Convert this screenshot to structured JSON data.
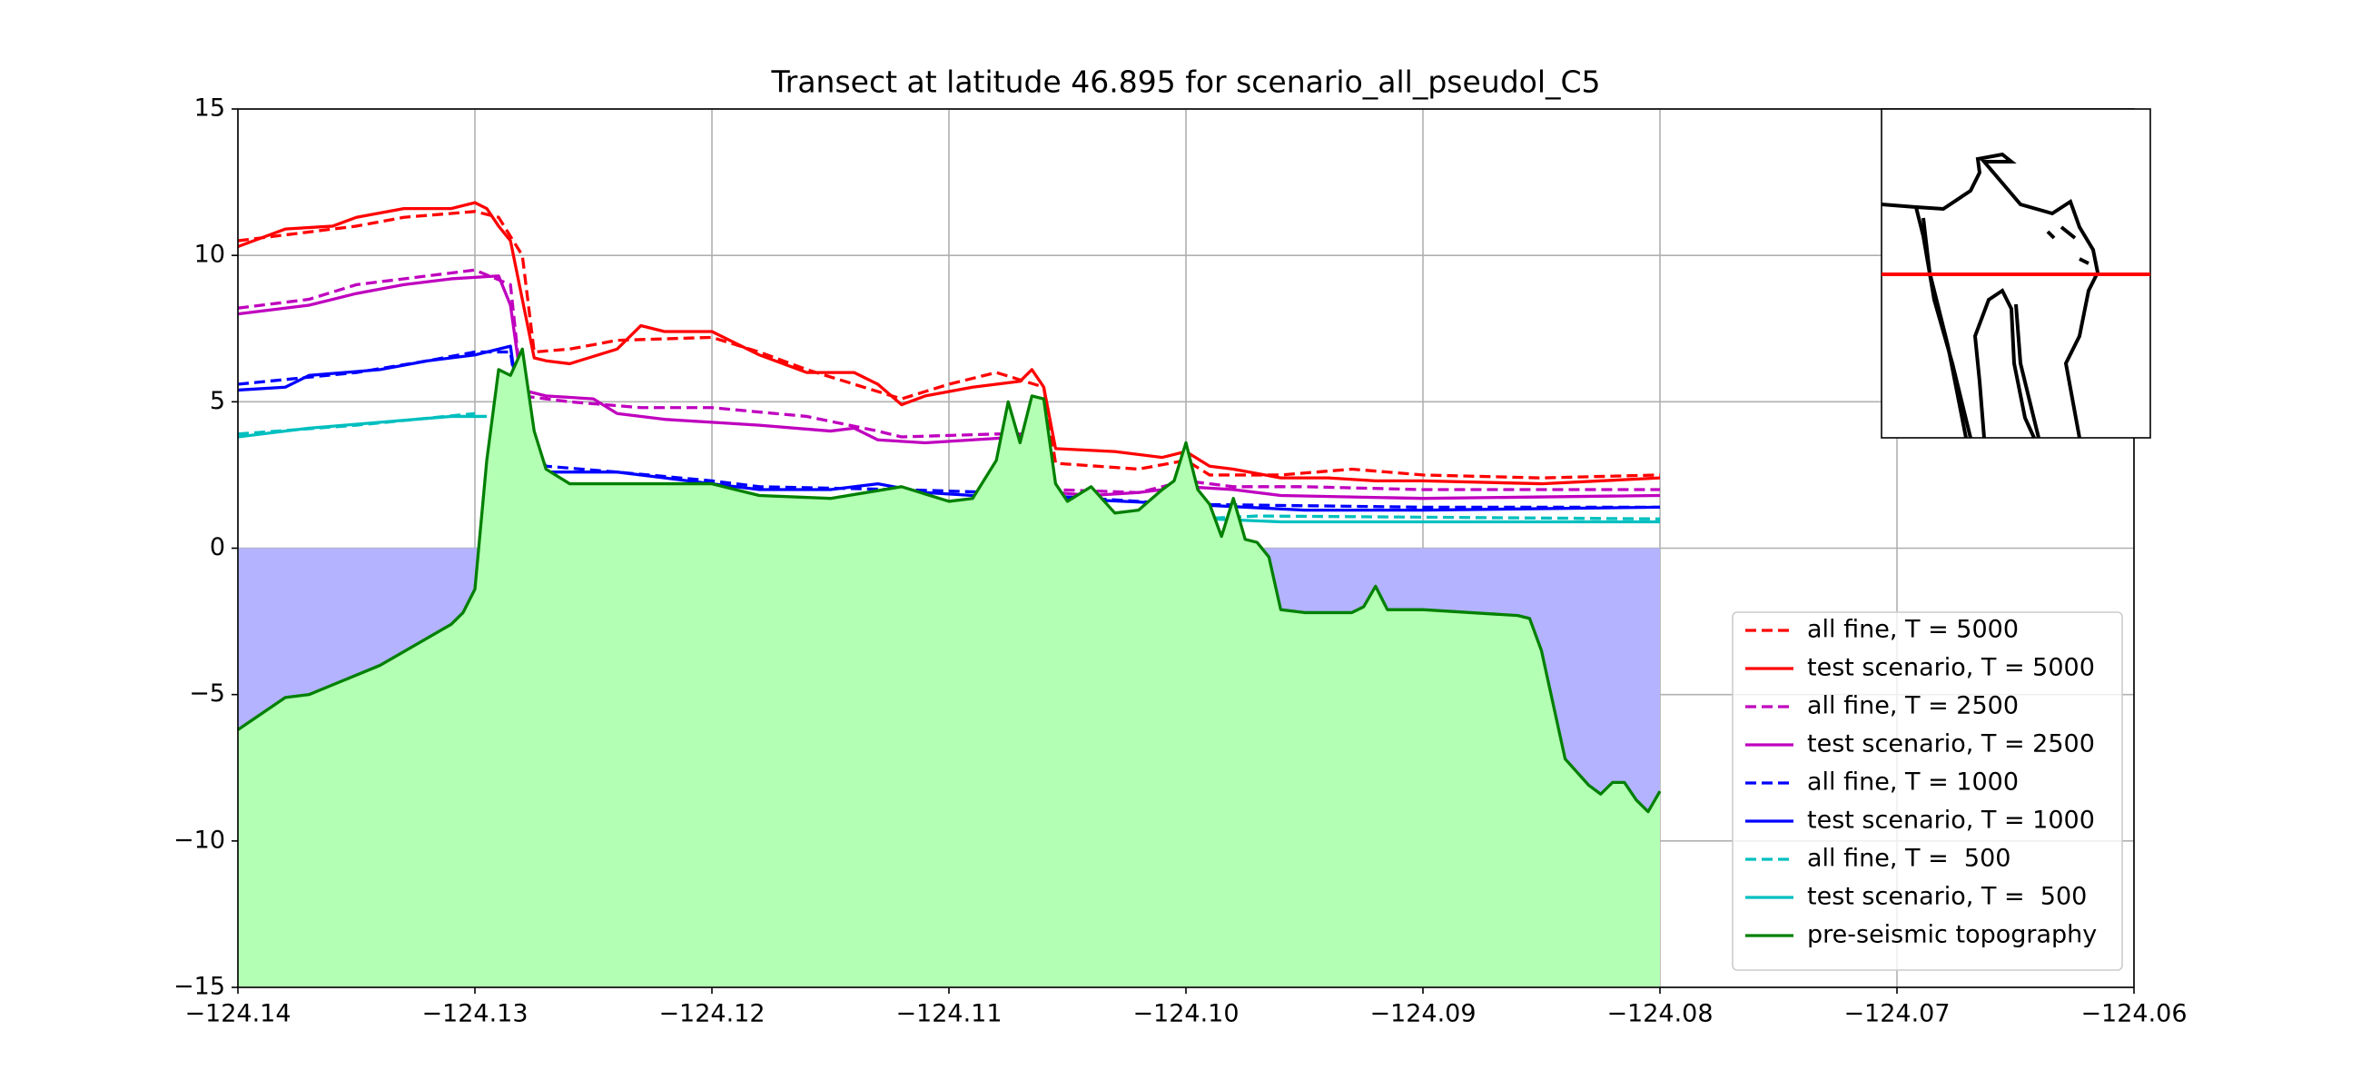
{
  "chart_data": {
    "type": "line",
    "title": "Transect at latitude 46.895 for scenario_all_pseudol_C5",
    "xlim": [
      -124.14,
      -124.06
    ],
    "ylim": [
      -15,
      15
    ],
    "xticks": [
      {
        "value": -124.14,
        "label": "−124.14"
      },
      {
        "value": -124.13,
        "label": "−124.13"
      },
      {
        "value": -124.12,
        "label": "−124.12"
      },
      {
        "value": -124.11,
        "label": "−124.11"
      },
      {
        "value": -124.1,
        "label": "−124.10"
      },
      {
        "value": -124.09,
        "label": "−124.09"
      },
      {
        "value": -124.08,
        "label": "−124.08"
      },
      {
        "value": -124.07,
        "label": "−124.07"
      },
      {
        "value": -124.06,
        "label": "−124.06"
      }
    ],
    "yticks": [
      {
        "value": -15,
        "label": "−15"
      },
      {
        "value": -10,
        "label": "−10"
      },
      {
        "value": -5,
        "label": "−5"
      },
      0,
      5,
      10,
      15
    ],
    "grid": true,
    "legend": "lower right",
    "series": [
      {
        "name": "all fine, T = 5000",
        "color": "#ff0000",
        "linestyle": "dashed",
        "x": [
          -124.14,
          -124.135,
          -124.133,
          -124.13,
          -124.129,
          -124.128,
          -124.1275,
          -124.126,
          -124.124,
          -124.12,
          -124.118,
          -124.116,
          -124.112,
          -124.11,
          -124.108,
          -124.106,
          -124.1055,
          -124.102,
          -124.1,
          -124.099,
          -124.096,
          -124.093,
          -124.09,
          -124.085,
          -124.08
        ],
        "values": [
          10.5,
          11.0,
          11.3,
          11.5,
          11.3,
          10.0,
          6.7,
          6.8,
          7.1,
          7.2,
          6.7,
          6.1,
          5.1,
          5.6,
          6.0,
          5.5,
          2.9,
          2.7,
          3.0,
          2.5,
          2.5,
          2.7,
          2.5,
          2.4,
          2.5
        ]
      },
      {
        "name": "test scenario, T = 5000",
        "color": "#ff0000",
        "linestyle": "solid",
        "x": [
          -124.14,
          -124.138,
          -124.136,
          -124.135,
          -124.133,
          -124.131,
          -124.13,
          -124.1295,
          -124.129,
          -124.1285,
          -124.128,
          -124.1275,
          -124.127,
          -124.126,
          -124.124,
          -124.123,
          -124.122,
          -124.12,
          -124.118,
          -124.116,
          -124.114,
          -124.113,
          -124.112,
          -124.111,
          -124.109,
          -124.107,
          -124.1065,
          -124.106,
          -124.1055,
          -124.103,
          -124.101,
          -124.1,
          -124.099,
          -124.098,
          -124.096,
          -124.094,
          -124.092,
          -124.09,
          -124.085,
          -124.08
        ],
        "values": [
          10.3,
          10.9,
          11.0,
          11.3,
          11.6,
          11.6,
          11.8,
          11.6,
          11.0,
          10.5,
          8.5,
          6.5,
          6.4,
          6.3,
          6.8,
          7.6,
          7.4,
          7.4,
          6.6,
          6.0,
          6.0,
          5.6,
          4.9,
          5.2,
          5.5,
          5.7,
          6.1,
          5.5,
          3.4,
          3.3,
          3.1,
          3.3,
          2.8,
          2.7,
          2.4,
          2.4,
          2.3,
          2.3,
          2.2,
          2.4
        ]
      },
      {
        "name": "all fine, T = 2500",
        "color": "#bf00bf",
        "linestyle": "dashed",
        "x": [
          -124.14,
          -124.137,
          -124.135,
          -124.132,
          -124.13,
          -124.1285,
          -124.128,
          -124.126,
          -124.123,
          -124.12,
          -124.116,
          -124.113,
          -124.112,
          -124.108,
          -124.106,
          -124.1055,
          -124.102,
          -124.1,
          -124.098,
          -124.095,
          -124.09,
          -124.08
        ],
        "values": [
          8.2,
          8.5,
          9.0,
          9.3,
          9.5,
          9.0,
          5.2,
          5.0,
          4.8,
          4.8,
          4.5,
          4.0,
          3.8,
          3.9,
          3.9,
          2.0,
          1.9,
          2.3,
          2.1,
          2.1,
          2.0,
          2.0
        ]
      },
      {
        "name": "test scenario, T = 2500",
        "color": "#bf00bf",
        "linestyle": "solid",
        "x": [
          -124.14,
          -124.137,
          -124.135,
          -124.133,
          -124.131,
          -124.129,
          -124.1285,
          -124.128,
          -124.127,
          -124.125,
          -124.124,
          -124.122,
          -124.12,
          -124.118,
          -124.115,
          -124.114,
          -124.113,
          -124.111,
          -124.109,
          -124.107,
          -124.106,
          -124.1055,
          -124.104,
          -124.102,
          -124.1,
          -124.098,
          -124.096,
          -124.09,
          -124.08
        ],
        "values": [
          8.0,
          8.3,
          8.7,
          9.0,
          9.2,
          9.3,
          8.3,
          5.4,
          5.2,
          5.1,
          4.6,
          4.4,
          4.3,
          4.2,
          4.0,
          4.1,
          3.7,
          3.6,
          3.7,
          3.8,
          3.9,
          1.9,
          1.8,
          1.9,
          2.1,
          2.0,
          1.8,
          1.7,
          1.8
        ]
      },
      {
        "name": "all fine, T = 1000",
        "color": "#0000ff",
        "linestyle": "dashed",
        "x": [
          -124.14,
          -124.135,
          -124.132,
          -124.13,
          -124.1285,
          -124.128,
          -124.127,
          -124.124,
          -124.12,
          -124.118,
          -124.112,
          -124.108,
          -124.1,
          -124.09,
          -124.08
        ],
        "values": [
          5.6,
          6.0,
          6.4,
          6.7,
          6.7,
          4.0,
          2.8,
          2.6,
          2.3,
          2.1,
          2.0,
          1.9,
          1.5,
          1.4,
          1.4
        ]
      },
      {
        "name": "test scenario, T = 1000",
        "color": "#0000ff",
        "linestyle": "solid",
        "x": [
          -124.14,
          -124.138,
          -124.137,
          -124.134,
          -124.132,
          -124.13,
          -124.1285,
          -124.128,
          -124.1275,
          -124.127,
          -124.124,
          -124.122,
          -124.118,
          -124.115,
          -124.113,
          -124.111,
          -124.109,
          -124.108,
          -124.1,
          -124.095,
          -124.09,
          -124.08
        ],
        "values": [
          5.4,
          5.5,
          5.9,
          6.1,
          6.4,
          6.6,
          6.9,
          4.0,
          3.0,
          2.6,
          2.6,
          2.4,
          2.0,
          2.0,
          2.2,
          1.9,
          1.8,
          1.8,
          1.5,
          1.3,
          1.3,
          1.4
        ]
      },
      {
        "name": "all fine, T =  500",
        "color": "#00bfbf",
        "linestyle": "dashed",
        "x": [
          -124.14,
          -124.135,
          -124.13,
          -124.1,
          -124.0995,
          -124.097,
          -124.08
        ],
        "values": [
          3.9,
          4.2,
          4.6,
          null,
          1.0,
          1.1,
          1.0
        ]
      },
      {
        "name": "test scenario, T =  500",
        "color": "#00bfbf",
        "linestyle": "solid",
        "x": [
          -124.14,
          -124.137,
          -124.134,
          -124.131,
          -124.1295,
          -124.1,
          -124.0995,
          -124.099,
          -124.096,
          -124.08
        ],
        "values": [
          3.8,
          4.1,
          4.3,
          4.5,
          4.5,
          null,
          0.9,
          1.0,
          0.9,
          0.9
        ]
      },
      {
        "name": "pre-seismic topography",
        "color": "#008000",
        "linestyle": "solid",
        "fill_colors": [
          "#b3b3ff",
          "#b3ffb3"
        ],
        "x": [
          -124.14,
          -124.138,
          -124.137,
          -124.134,
          -124.131,
          -124.1305,
          -124.13,
          -124.1295,
          -124.129,
          -124.1285,
          -124.128,
          -124.1275,
          -124.127,
          -124.126,
          -124.125,
          -124.124,
          -124.12,
          -124.118,
          -124.115,
          -124.112,
          -124.11,
          -124.109,
          -124.108,
          -124.1075,
          -124.107,
          -124.1065,
          -124.106,
          -124.1055,
          -124.105,
          -124.104,
          -124.103,
          -124.102,
          -124.101,
          -124.1005,
          -124.1,
          -124.0995,
          -124.099,
          -124.0985,
          -124.098,
          -124.0975,
          -124.097,
          -124.0965,
          -124.096,
          -124.095,
          -124.093,
          -124.0925,
          -124.092,
          -124.0915,
          -124.09,
          -124.086,
          -124.0855,
          -124.085,
          -124.084,
          -124.083,
          -124.0825,
          -124.082,
          -124.0815,
          -124.081,
          -124.0805,
          -124.08
        ],
        "values": [
          -6.2,
          -5.1,
          -5.0,
          -4.0,
          -2.6,
          -2.2,
          -1.4,
          3.0,
          6.1,
          5.9,
          6.8,
          4.0,
          2.7,
          2.2,
          2.2,
          2.2,
          2.2,
          1.8,
          1.7,
          2.1,
          1.6,
          1.7,
          3.0,
          5.0,
          3.6,
          5.2,
          5.1,
          2.2,
          1.6,
          2.1,
          1.2,
          1.3,
          2.0,
          2.3,
          3.6,
          2.0,
          1.5,
          0.4,
          1.7,
          0.3,
          0.2,
          -0.3,
          -2.1,
          -2.2,
          -2.2,
          -2.0,
          -1.3,
          -2.1,
          -2.1,
          -2.3,
          -2.4,
          -3.5,
          -7.2,
          -8.1,
          -8.4,
          -8.0,
          -8.0,
          -8.6,
          -9.0,
          -8.3
        ]
      }
    ]
  }
}
